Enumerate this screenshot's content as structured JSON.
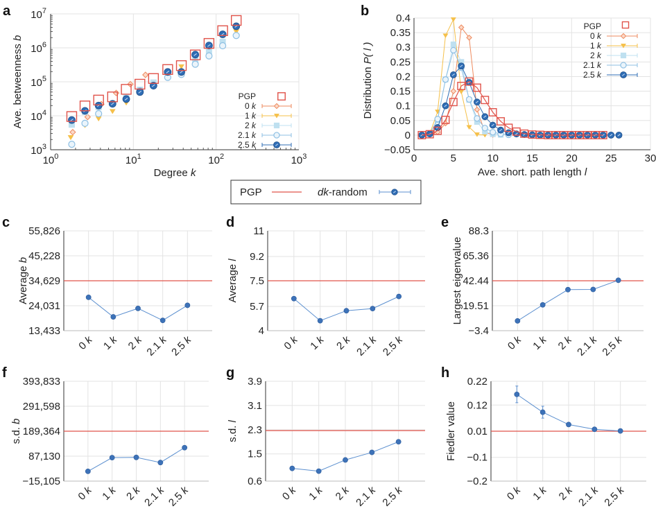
{
  "colors": {
    "pgp": "#e0534a",
    "k0": "#ee8a5e",
    "k1": "#f5c04a",
    "k2": "#bfe0f0",
    "k21": "#8dbfe3",
    "k25": "#2f6db5",
    "line": "#5b8fcf",
    "point": "#3d72b8"
  },
  "shared_legend": {
    "pgp_label": "PGP",
    "dk_label_italic": "dk",
    "dk_label_rest": "-random"
  },
  "chart_data": [
    {
      "id": "a",
      "panel_letter": "a",
      "type": "scatter",
      "xscale": "log",
      "yscale": "log",
      "xlabel_main": "Degree ",
      "xlabel_var": "k",
      "ylabel_main": "Ave. betweenness ",
      "ylabel_var": "b",
      "xlim": [
        1,
        1000
      ],
      "ylim": [
        1000,
        10000000
      ],
      "xticks": [
        {
          "v": 1,
          "base": "10",
          "exp": "0"
        },
        {
          "v": 10,
          "base": "10",
          "exp": "1"
        },
        {
          "v": 100,
          "base": "10",
          "exp": "2"
        },
        {
          "v": 1000,
          "base": "10",
          "exp": "3"
        }
      ],
      "yticks": [
        {
          "v": 1000,
          "base": "10",
          "exp": "3"
        },
        {
          "v": 10000,
          "base": "10",
          "exp": "4"
        },
        {
          "v": 100000,
          "base": "10",
          "exp": "5"
        },
        {
          "v": 1000000,
          "base": "10",
          "exp": "6"
        },
        {
          "v": 10000000,
          "base": "10",
          "exp": "7"
        }
      ],
      "legend": {
        "position": "bottom-right"
      },
      "series": [
        {
          "name": "PGP",
          "color_key": "pgp",
          "marker": "square",
          "x": [
            1.8,
            2.6,
            3.8,
            5.6,
            8.2,
            12,
            17.5,
            26,
            38,
            56,
            82,
            120,
            175
          ],
          "y": [
            9500,
            19500,
            29000,
            36000,
            60000,
            85000,
            125000,
            230000,
            300000,
            620000,
            1350000,
            3200000,
            6400000
          ]
        },
        {
          "name": "0 k",
          "color_key": "k0",
          "marker": "diamond",
          "x": [
            1.85,
            2.8,
            4.1,
            6.2,
            9.2,
            14
          ],
          "y": [
            3300,
            9200,
            22000,
            47000,
            85000,
            160000
          ]
        },
        {
          "name": "1 k",
          "color_key": "k1",
          "marker": "triangle",
          "x": [
            1.75,
            2.6,
            3.8,
            5.6,
            8.2,
            38,
            175
          ],
          "y": [
            2300,
            5200,
            8200,
            13500,
            24000,
            280000,
            3000000
          ]
        },
        {
          "name": "2 k",
          "color_key": "k2",
          "marker": "filled-square",
          "x": [
            1.8,
            2.6,
            3.8,
            8.2,
            12,
            17.5,
            56,
            82,
            120
          ],
          "y": [
            5500,
            13000,
            18000,
            34000,
            58000,
            95000,
            420000,
            820000,
            1500000
          ]
        },
        {
          "name": "2.1 k",
          "color_key": "k21",
          "marker": "open-circle",
          "x": [
            1.8,
            2.6,
            3.8,
            12,
            26,
            38,
            56,
            82,
            120,
            175
          ],
          "y": [
            1450,
            6000,
            11500,
            54000,
            135000,
            165000,
            330000,
            580000,
            1150000,
            2300000
          ]
        },
        {
          "name": "2.5 k",
          "color_key": "k25",
          "marker": "filled-circle",
          "x": [
            1.8,
            2.6,
            3.8,
            5.6,
            8.2,
            12,
            17.5,
            26,
            38,
            56,
            82,
            120,
            175
          ],
          "y": [
            7500,
            14000,
            20000,
            22500,
            31000,
            50000,
            77000,
            195000,
            195000,
            630000,
            1170000,
            2500000,
            4300000
          ]
        }
      ]
    },
    {
      "id": "b",
      "panel_letter": "b",
      "type": "line",
      "xlabel_main": "Ave. short. path length ",
      "xlabel_var": "l",
      "ylabel_main": "Distribution ",
      "ylabel_var": "P( l )",
      "xlim": [
        0,
        30
      ],
      "ylim": [
        -0.05,
        0.4
      ],
      "xticks": [
        "0",
        "5",
        "10",
        "15",
        "20",
        "25",
        "30"
      ],
      "xtick_values": [
        0,
        5,
        10,
        15,
        20,
        25,
        30
      ],
      "yticks": [
        "−0.05",
        "0",
        "0.05",
        "0.1",
        "0.15",
        "0.2",
        "0.25",
        "0.3",
        "0.35",
        "0.4"
      ],
      "ytick_values": [
        -0.05,
        0,
        0.05,
        0.1,
        0.15,
        0.2,
        0.25,
        0.3,
        0.35,
        0.4
      ],
      "legend": {
        "position": "top-right"
      },
      "series": [
        {
          "name": "PGP",
          "color_key": "pgp",
          "marker": "square",
          "x": [
            1,
            2,
            3,
            4,
            5,
            6,
            7,
            8,
            9,
            10,
            11,
            12,
            13,
            14,
            15,
            16,
            17,
            18,
            19,
            20,
            21,
            22,
            23,
            24
          ],
          "y": [
            0,
            0.003,
            0.015,
            0.052,
            0.113,
            0.168,
            0.183,
            0.162,
            0.12,
            0.078,
            0.047,
            0.025,
            0.012,
            0.005,
            0.002,
            0.001,
            0,
            0,
            0,
            0,
            0,
            0,
            0,
            0
          ]
        },
        {
          "name": "0 k",
          "color_key": "k0",
          "marker": "diamond",
          "x": [
            2,
            3,
            4,
            5,
            6,
            7,
            8,
            9,
            10
          ],
          "y": [
            0.003,
            0.01,
            0.04,
            0.15,
            0.368,
            0.333,
            0.087,
            0.01,
            0.001
          ]
        },
        {
          "name": "1 k",
          "color_key": "k1",
          "marker": "triangle",
          "x": [
            2,
            3,
            4,
            5,
            6,
            7,
            8,
            9
          ],
          "y": [
            0.005,
            0.08,
            0.34,
            0.395,
            0.148,
            0.027,
            0.002,
            0
          ]
        },
        {
          "name": "2 k",
          "color_key": "k2",
          "marker": "filled-square",
          "x": [
            2,
            3,
            4,
            5,
            6,
            7,
            8,
            9,
            10,
            11
          ],
          "y": [
            0.004,
            0.05,
            0.19,
            0.31,
            0.25,
            0.12,
            0.045,
            0.012,
            0.003,
            0.001
          ]
        },
        {
          "name": "2.1 k",
          "color_key": "k21",
          "marker": "open-circle",
          "x": [
            2,
            3,
            4,
            5,
            6,
            7,
            8,
            9,
            10,
            11,
            12
          ],
          "y": [
            0.004,
            0.055,
            0.19,
            0.29,
            0.23,
            0.122,
            0.057,
            0.024,
            0.01,
            0.004,
            0.001
          ]
        },
        {
          "name": "2.5 k",
          "color_key": "k25",
          "marker": "filled-circle",
          "x": [
            1,
            2,
            3,
            4,
            5,
            6,
            7,
            8,
            9,
            10,
            11,
            12,
            13,
            14,
            15,
            16,
            17,
            18,
            19,
            20,
            21,
            22,
            23,
            24,
            25,
            26
          ],
          "y": [
            0,
            0.004,
            0.026,
            0.1,
            0.206,
            0.236,
            0.18,
            0.113,
            0.063,
            0.034,
            0.017,
            0.008,
            0.004,
            0.002,
            0.001,
            0,
            0,
            0,
            0,
            0,
            0,
            0,
            0,
            0,
            0,
            0
          ]
        }
      ]
    },
    {
      "id": "c",
      "panel_letter": "c",
      "type": "line",
      "ylabel_main": "Average ",
      "ylabel_var": "b",
      "categories": [
        "0 k",
        "1 k",
        "2 k",
        "2.1 k",
        "2.5 k"
      ],
      "ylim": [
        13433,
        55826
      ],
      "yticks": [
        "13,433",
        "24,031",
        "34,629",
        "45,228",
        "55,826"
      ],
      "ytick_values": [
        13433,
        24031,
        34629,
        45228,
        55826
      ],
      "reference": {
        "name": "PGP",
        "value": 34629
      },
      "values": [
        27600,
        19300,
        22900,
        17800,
        24200
      ],
      "errors": [
        0,
        0,
        0,
        0,
        0
      ]
    },
    {
      "id": "d",
      "panel_letter": "d",
      "type": "line",
      "ylabel_main": "Average ",
      "ylabel_var": "l",
      "categories": [
        "0 k",
        "1 k",
        "2 k",
        "2.1 k",
        "2.5 k"
      ],
      "ylim": [
        4,
        11
      ],
      "yticks": [
        "4",
        "5.7",
        "7.5",
        "9.2",
        "11"
      ],
      "ytick_values": [
        4,
        5.7,
        7.5,
        9.2,
        11
      ],
      "reference": {
        "name": "PGP",
        "value": 7.5
      },
      "values": [
        6.25,
        4.7,
        5.4,
        5.55,
        6.4
      ],
      "errors": [
        0,
        0,
        0,
        0,
        0
      ]
    },
    {
      "id": "e",
      "panel_letter": "e",
      "type": "line",
      "ylabel_main": "Largest eigenvalue",
      "ylabel_var": "",
      "categories": [
        "0 k",
        "1 k",
        "2 k",
        "2.1 k",
        "2.5 k"
      ],
      "ylim": [
        -3.4,
        88.3
      ],
      "yticks": [
        "−3.4",
        "19.51",
        "42.44",
        "65.36",
        "88.3"
      ],
      "ytick_values": [
        -3.4,
        19.51,
        42.44,
        65.36,
        88.3
      ],
      "reference": {
        "name": "PGP",
        "value": 42.44
      },
      "values": [
        5.6,
        20.3,
        34.3,
        34.5,
        42.9
      ],
      "errors": [
        0,
        0,
        0,
        0,
        0
      ]
    },
    {
      "id": "f",
      "panel_letter": "f",
      "type": "line",
      "ylabel_main": "s.d. ",
      "ylabel_var": "b",
      "categories": [
        "0 k",
        "1 k",
        "2 k",
        "2.1 k",
        "2.5 k"
      ],
      "ylim": [
        -15105,
        393833
      ],
      "yticks": [
        "−15,105",
        "87,130",
        "189,364",
        "291,598",
        "393,833"
      ],
      "ytick_values": [
        -15105,
        87130,
        189364,
        291598,
        393833
      ],
      "reference": {
        "name": "PGP",
        "value": 189364
      },
      "values": [
        25000,
        81000,
        82000,
        61000,
        122000
      ],
      "errors": [
        0,
        0,
        0,
        0,
        0
      ]
    },
    {
      "id": "g",
      "panel_letter": "g",
      "type": "line",
      "ylabel_main": "s.d. ",
      "ylabel_var": "l",
      "categories": [
        "0 k",
        "1 k",
        "2 k",
        "2.1 k",
        "2.5 k"
      ],
      "ylim": [
        0.6,
        3.9
      ],
      "yticks": [
        "0.6",
        "1.5",
        "2.3",
        "3.1",
        "3.9"
      ],
      "ytick_values": [
        0.6,
        1.5,
        2.3,
        3.1,
        3.9
      ],
      "reference": {
        "name": "PGP",
        "value": 2.27
      },
      "values": [
        1.02,
        0.93,
        1.3,
        1.55,
        1.9
      ],
      "errors": [
        0,
        0,
        0,
        0,
        0
      ]
    },
    {
      "id": "h",
      "panel_letter": "h",
      "type": "line",
      "ylabel_main": "Fiedler value",
      "ylabel_var": "",
      "categories": [
        "0 k",
        "1 k",
        "2 k",
        "2.1 k",
        "2.5 k"
      ],
      "ylim": [
        -0.2,
        0.22
      ],
      "yticks": [
        "−0.2",
        "−0.1",
        "0.01",
        "0.12",
        "0.22"
      ],
      "ytick_values": [
        -0.2,
        -0.1,
        0.01,
        0.12,
        0.22
      ],
      "reference": {
        "name": "PGP",
        "value": 0.01
      },
      "values": [
        0.165,
        0.09,
        0.038,
        0.018,
        0.011
      ],
      "errors": [
        0.035,
        0.025,
        0.008,
        0.003,
        0.002
      ]
    }
  ]
}
